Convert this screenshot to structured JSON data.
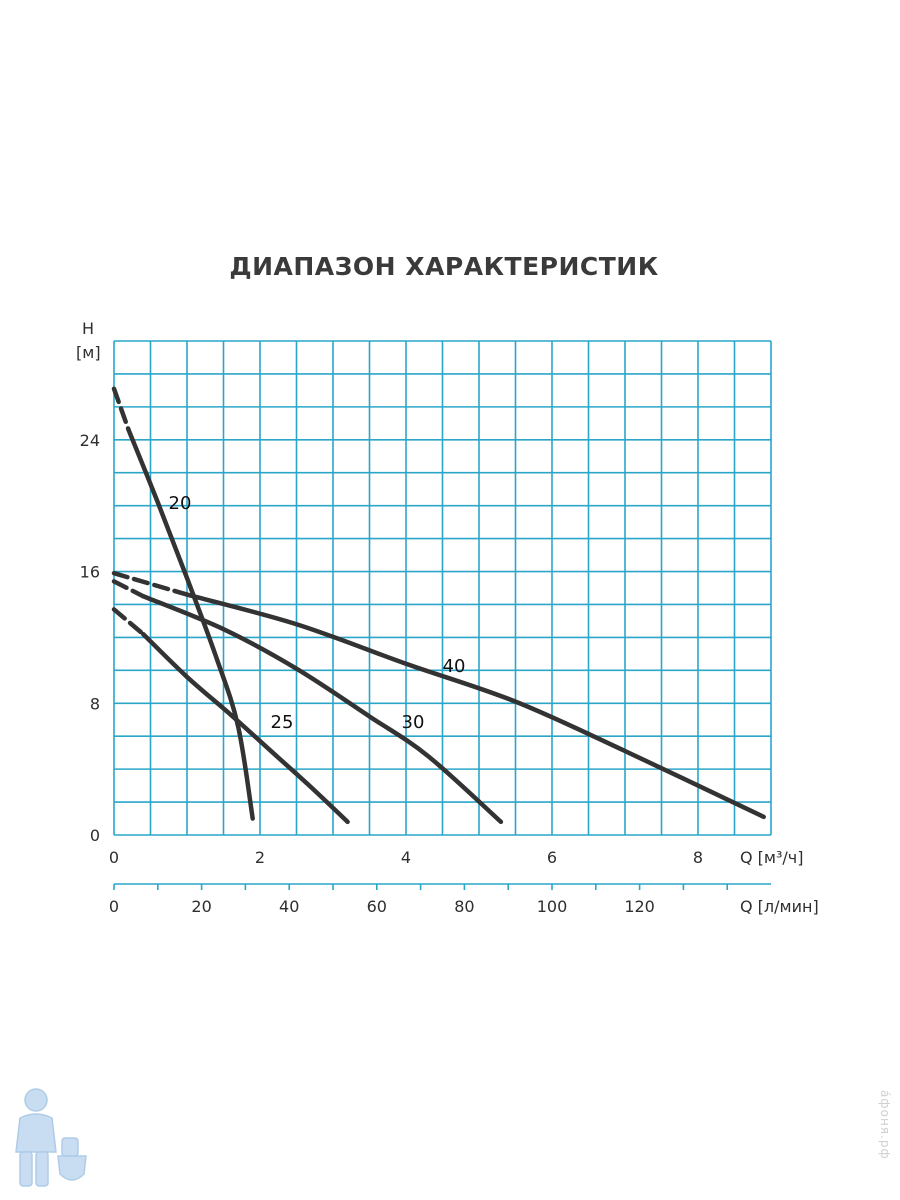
{
  "chart_data": {
    "type": "line",
    "title": "ДИАПАЗОН ХАРАКТЕРИСТИК",
    "ylabel_line1": "H",
    "ylabel_line2": "[м]",
    "xlabel": "Q [м³/ч]",
    "xlabel2": "Q [л/мин]",
    "xlim": [
      0,
      9
    ],
    "ylim": [
      0,
      30
    ],
    "x_ticks": [
      0,
      2,
      4,
      6,
      8
    ],
    "y_ticks": [
      0,
      8,
      16,
      24
    ],
    "x2_ticks": [
      0,
      20,
      40,
      60,
      80,
      100,
      120
    ],
    "grid": true,
    "series": [
      {
        "name": "20",
        "dashed": [
          [
            0,
            27.1
          ],
          [
            0.2,
            24.6
          ]
        ],
        "values": [
          [
            0.2,
            24.6
          ],
          [
            0.6,
            20.2
          ],
          [
            1.0,
            15.6
          ],
          [
            1.4,
            10.8
          ],
          [
            1.7,
            6.6
          ],
          [
            1.9,
            1.0
          ]
        ]
      },
      {
        "name": "25",
        "dashed": [
          [
            0,
            13.7
          ],
          [
            0.4,
            12.2
          ]
        ],
        "values": [
          [
            0.4,
            12.2
          ],
          [
            1.0,
            9.6
          ],
          [
            1.6,
            7.3
          ],
          [
            2.2,
            4.9
          ],
          [
            2.7,
            2.9
          ],
          [
            3.2,
            0.8
          ]
        ]
      },
      {
        "name": "30",
        "dashed": [
          [
            0,
            15.4
          ],
          [
            0.4,
            14.5
          ]
        ],
        "values": [
          [
            0.4,
            14.5
          ],
          [
            1.5,
            12.5
          ],
          [
            2.5,
            10.1
          ],
          [
            3.5,
            7.2
          ],
          [
            4.3,
            4.8
          ],
          [
            5.3,
            0.8
          ]
        ]
      },
      {
        "name": "40",
        "dashed": [
          [
            0,
            15.9
          ],
          [
            1.0,
            14.6
          ]
        ],
        "values": [
          [
            1.0,
            14.6
          ],
          [
            2.5,
            12.8
          ],
          [
            4.0,
            10.4
          ],
          [
            5.5,
            8.1
          ],
          [
            7.0,
            5.1
          ],
          [
            8.9,
            1.1
          ]
        ]
      }
    ]
  },
  "watermark": "а́фоня.рф",
  "logo_icon": "plumber-mascot-icon"
}
